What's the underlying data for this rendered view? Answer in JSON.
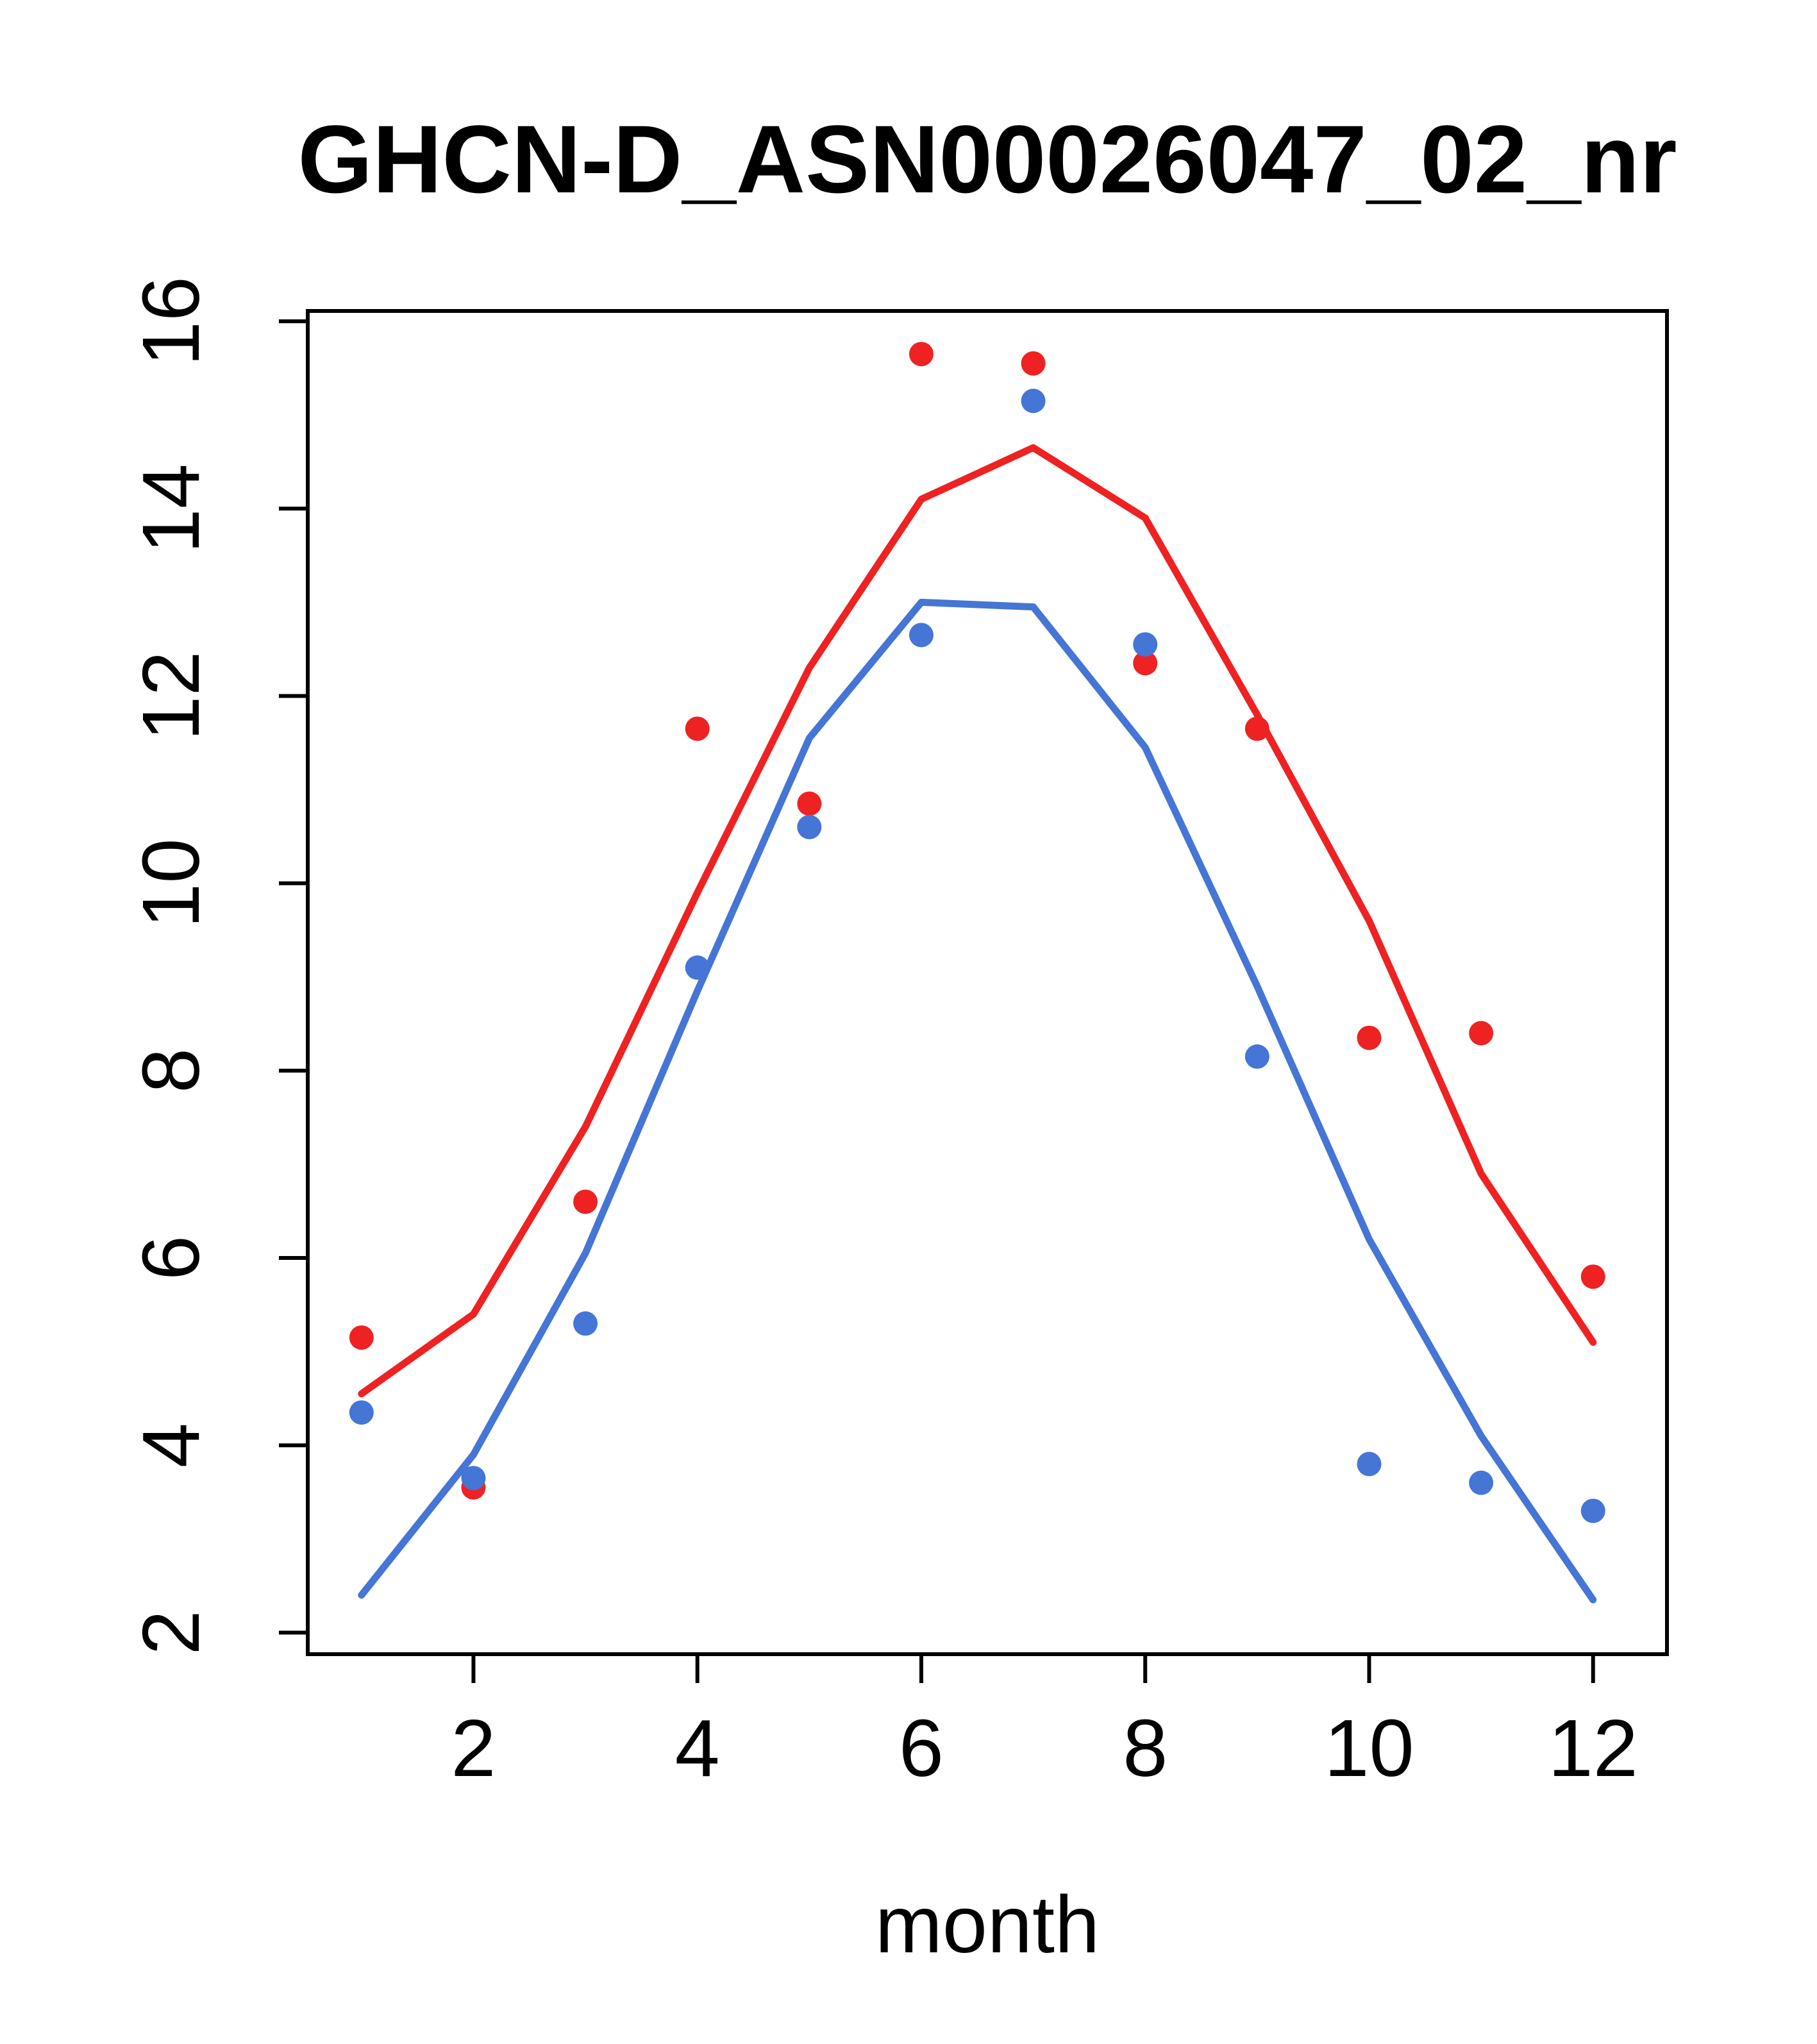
{
  "chart_data": {
    "type": "scatter",
    "title": "GHCN-D_ASN00026047_02_nr",
    "xlabel": "month",
    "ylabel": "",
    "x": [
      1,
      2,
      3,
      4,
      5,
      6,
      7,
      8,
      9,
      10,
      11,
      12
    ],
    "xticks": [
      2,
      4,
      6,
      8,
      10,
      12
    ],
    "yticks": [
      2,
      4,
      6,
      8,
      10,
      12,
      14,
      16
    ],
    "xlim": [
      0.52,
      12.66
    ],
    "ylim": [
      1.77,
      16.11
    ],
    "grid": false,
    "legend": null,
    "colors": {
      "red": "#ee2222",
      "blue": "#4575d5"
    },
    "series": [
      {
        "name": "red-fit-line",
        "kind": "line",
        "color": "#ee2222",
        "values": [
          4.55,
          5.4,
          7.4,
          9.9,
          12.3,
          14.1,
          14.65,
          13.9,
          11.8,
          9.6,
          6.9,
          5.1
        ]
      },
      {
        "name": "blue-fit-line",
        "kind": "line",
        "color": "#4575d5",
        "values": [
          2.4,
          3.9,
          6.05,
          8.85,
          11.55,
          13.0,
          12.95,
          11.45,
          8.9,
          6.2,
          4.1,
          2.35
        ]
      },
      {
        "name": "red-points",
        "kind": "points",
        "color": "#ee2222",
        "values": [
          5.15,
          3.55,
          6.6,
          11.65,
          10.85,
          15.65,
          15.55,
          12.35,
          11.65,
          8.35,
          8.4,
          5.8
        ]
      },
      {
        "name": "blue-points",
        "kind": "points",
        "color": "#4575d5",
        "values": [
          4.35,
          3.65,
          5.3,
          9.1,
          10.6,
          12.65,
          15.15,
          12.55,
          8.15,
          3.8,
          3.6,
          3.3
        ]
      }
    ]
  }
}
